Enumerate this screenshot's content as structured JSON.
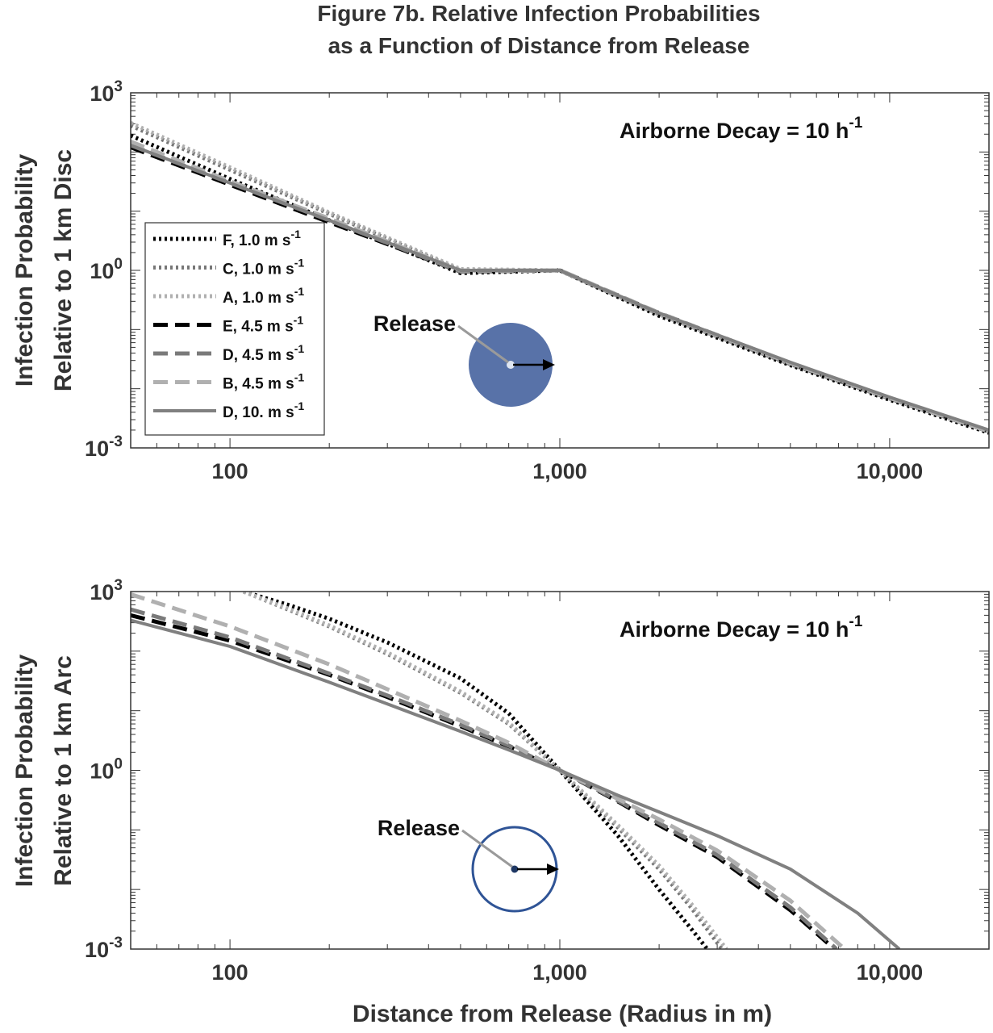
{
  "figure": {
    "title_line1": "Figure 7b. Relative Infection Probabilities",
    "title_line2": "as a Function of Distance from Release",
    "xlabel": "Distance from Release (Radius in m)"
  },
  "colors": {
    "F": "#000000",
    "C": "#777777",
    "A": "#b0b0b0",
    "E": "#000000",
    "D45": "#7a7a7a",
    "B": "#b0b0b0",
    "D10": "#808080",
    "disc_fill": "#5872a8",
    "arc_stroke": "#2f5496"
  },
  "chart_data": [
    {
      "type": "line",
      "panel": "top",
      "ylabel_line1": "Infection Probability",
      "ylabel_line2": "Relative to 1 km Disc",
      "annotation_base": "Airborne Decay = 10 h",
      "annotation_exp": "-1",
      "release_label": "Release",
      "x_scale": "log",
      "y_scale": "log",
      "xlim": [
        50,
        20000
      ],
      "ylim": [
        0.001,
        1000
      ],
      "x_ticks": [
        100,
        1000,
        10000
      ],
      "x_tick_labels": [
        "100",
        "1,000",
        "10,000"
      ],
      "y_ticks": [
        {
          "base": "10",
          "exp": "3",
          "value": 1000
        },
        {
          "base": "10",
          "exp": "0",
          "value": 1
        },
        {
          "base": "10",
          "exp": "-3",
          "value": 0.001
        }
      ],
      "legend_position": "center-left",
      "series": [
        {
          "name": "F, 1.0 m s",
          "exp": "-1",
          "style": "dotted",
          "color_key": "F",
          "x": [
            50,
            100,
            200,
            500,
            1000,
            2000,
            5000,
            10000,
            20000
          ],
          "y": [
            190,
            35,
            7,
            0.9,
            1.0,
            0.17,
            0.025,
            0.0065,
            0.0018
          ]
        },
        {
          "name": "C, 1.0 m s",
          "exp": "-1",
          "style": "dotted",
          "color_key": "C",
          "x": [
            50,
            100,
            200,
            500,
            1000,
            2000,
            5000,
            10000,
            20000
          ],
          "y": [
            280,
            50,
            9,
            1.0,
            1.0,
            0.18,
            0.026,
            0.0068,
            0.0019
          ]
        },
        {
          "name": "A, 1.0 m s",
          "exp": "-1",
          "style": "dotted",
          "color_key": "A",
          "x": [
            50,
            100,
            200,
            500,
            1000,
            2000,
            5000,
            10000,
            20000
          ],
          "y": [
            310,
            55,
            9.5,
            1.05,
            1.0,
            0.18,
            0.027,
            0.007,
            0.0019
          ]
        },
        {
          "name": "E, 4.5 m s",
          "exp": "-1",
          "style": "dashed",
          "color_key": "E",
          "x": [
            50,
            100,
            200,
            500,
            1000,
            2000,
            5000,
            10000,
            20000
          ],
          "y": [
            120,
            28,
            6.5,
            0.95,
            1.0,
            0.19,
            0.027,
            0.007,
            0.0019
          ]
        },
        {
          "name": "D, 4.5 m s",
          "exp": "-1",
          "style": "dashed",
          "color_key": "D45",
          "x": [
            50,
            100,
            200,
            500,
            1000,
            2000,
            5000,
            10000,
            20000
          ],
          "y": [
            130,
            30,
            7,
            0.95,
            1.0,
            0.19,
            0.027,
            0.007,
            0.0019
          ]
        },
        {
          "name": "B, 4.5 m s",
          "exp": "-1",
          "style": "dashed",
          "color_key": "B",
          "x": [
            50,
            100,
            200,
            500,
            1000,
            2000,
            5000,
            10000,
            20000
          ],
          "y": [
            150,
            32,
            7.5,
            1.0,
            1.0,
            0.19,
            0.027,
            0.007,
            0.0019
          ]
        },
        {
          "name": "D, 10. m s",
          "exp": "-1",
          "style": "solid",
          "color_key": "D10",
          "x": [
            50,
            100,
            200,
            500,
            1000,
            2000,
            5000,
            10000,
            20000
          ],
          "y": [
            130,
            30,
            7,
            1.0,
            1.0,
            0.19,
            0.028,
            0.0072,
            0.002
          ]
        }
      ]
    },
    {
      "type": "line",
      "panel": "bottom",
      "ylabel_line1": "Infection Probability",
      "ylabel_line2": "Relative to 1 km Arc",
      "annotation_base": "Airborne Decay = 10 h",
      "annotation_exp": "-1",
      "release_label": "Release",
      "x_scale": "log",
      "y_scale": "log",
      "xlim": [
        50,
        20000
      ],
      "ylim": [
        0.001,
        1000
      ],
      "x_ticks": [
        100,
        1000,
        10000
      ],
      "x_tick_labels": [
        "100",
        "1,000",
        "10,000"
      ],
      "y_ticks": [
        {
          "base": "10",
          "exp": "3",
          "value": 1000
        },
        {
          "base": "10",
          "exp": "0",
          "value": 1
        },
        {
          "base": "10",
          "exp": "-3",
          "value": 0.001
        }
      ],
      "series": [
        {
          "name": "F, 1.0 m s",
          "style": "dotted",
          "color_key": "F",
          "x": [
            110,
            150,
            200,
            300,
            500,
            700,
            1000,
            1500,
            2000,
            2500,
            2800
          ],
          "y": [
            1000,
            600,
            350,
            140,
            35,
            9,
            1.0,
            0.08,
            0.01,
            0.0022,
            0.001
          ]
        },
        {
          "name": "C, 1.0 m s",
          "style": "dotted",
          "color_key": "C",
          "x": [
            110,
            150,
            200,
            300,
            500,
            700,
            1000,
            1500,
            2000,
            2500,
            3100
          ],
          "y": [
            1000,
            500,
            260,
            90,
            20,
            6,
            1.0,
            0.11,
            0.022,
            0.005,
            0.001
          ]
        },
        {
          "name": "A, 1.0 m s",
          "style": "dotted",
          "color_key": "A",
          "x": [
            110,
            150,
            200,
            300,
            500,
            700,
            1000,
            1500,
            2000,
            2500,
            3200
          ],
          "y": [
            1000,
            520,
            270,
            95,
            21,
            6.3,
            1.0,
            0.12,
            0.025,
            0.0058,
            0.001
          ]
        },
        {
          "name": "E, 4.5 m s",
          "style": "dashed",
          "color_key": "E",
          "x": [
            50,
            100,
            200,
            300,
            500,
            700,
            1000,
            1500,
            2000,
            3000,
            5000,
            6800
          ],
          "y": [
            400,
            150,
            40,
            17,
            5.5,
            2.5,
            1.0,
            0.3,
            0.12,
            0.035,
            0.0045,
            0.001
          ]
        },
        {
          "name": "D, 4.5 m s",
          "style": "dashed",
          "color_key": "D45",
          "x": [
            50,
            100,
            200,
            300,
            500,
            700,
            1000,
            1500,
            2000,
            3000,
            5000,
            6900
          ],
          "y": [
            500,
            170,
            42,
            18,
            5.8,
            2.6,
            1.0,
            0.31,
            0.13,
            0.038,
            0.005,
            0.001
          ]
        },
        {
          "name": "B, 4.5 m s",
          "style": "dashed",
          "color_key": "B",
          "x": [
            50,
            100,
            200,
            300,
            500,
            700,
            1000,
            1500,
            2000,
            3000,
            5000,
            7300
          ],
          "y": [
            900,
            260,
            60,
            23,
            6.8,
            2.9,
            1.0,
            0.33,
            0.15,
            0.045,
            0.0065,
            0.001
          ]
        },
        {
          "name": "D, 10. m s",
          "style": "solid",
          "color_key": "D10",
          "x": [
            50,
            100,
            200,
            300,
            500,
            700,
            1000,
            1500,
            2000,
            3000,
            5000,
            8000,
            10700
          ],
          "y": [
            330,
            120,
            30,
            13,
            4.5,
            2.2,
            1.0,
            0.38,
            0.2,
            0.08,
            0.022,
            0.004,
            0.001
          ]
        }
      ]
    }
  ]
}
